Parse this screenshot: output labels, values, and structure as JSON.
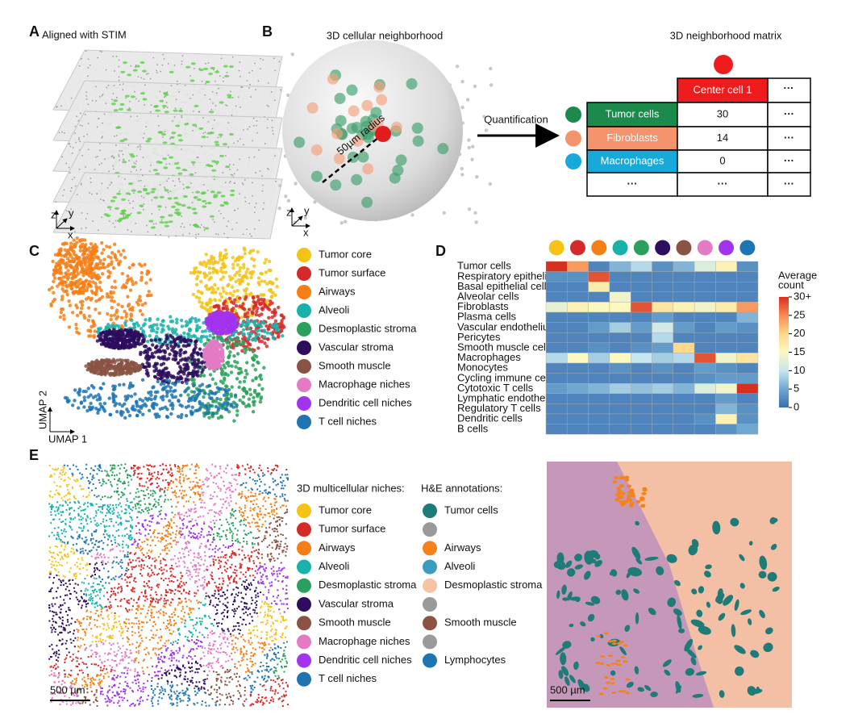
{
  "panel_labels": [
    "A",
    "B",
    "C",
    "D",
    "E"
  ],
  "panel_a": {
    "title": "Aligned with STIM",
    "axes": [
      "z",
      "y",
      "x"
    ]
  },
  "panel_b": {
    "title": "3D cellular neighborhood",
    "radius_label": "50µm radius",
    "axes": [
      "z",
      "y",
      "x"
    ],
    "arrow_label": "Quantification"
  },
  "matrix": {
    "title": "3D neighborhood matrix",
    "center_color": "#ee1c1c",
    "header": [
      "Center cell 1",
      "···"
    ],
    "rows": [
      {
        "label": "Tumor cells",
        "color": "#1b8a4a",
        "cells": [
          30,
          "···"
        ]
      },
      {
        "label": "Fibroblasts",
        "color": "#f4936c",
        "cells": [
          14,
          "···"
        ]
      },
      {
        "label": "Macrophages",
        "color": "#17a9d9",
        "cells": [
          0,
          "···"
        ]
      },
      {
        "label": "···",
        "color": null,
        "cells": [
          "···",
          "···"
        ]
      }
    ]
  },
  "niches": [
    {
      "name": "Tumor core",
      "color": "#f5c216"
    },
    {
      "name": "Tumor surface",
      "color": "#d62a2a"
    },
    {
      "name": "Airways",
      "color": "#f57f17"
    },
    {
      "name": "Alveoli",
      "color": "#19b2aa"
    },
    {
      "name": "Desmoplastic stroma",
      "color": "#2ba05c"
    },
    {
      "name": "Vascular stroma",
      "color": "#2e0c5e"
    },
    {
      "name": "Smooth muscle",
      "color": "#8a5344"
    },
    {
      "name": "Macrophage niches",
      "color": "#e47ac4"
    },
    {
      "name": "Dendritic cell niches",
      "color": "#a233ee"
    },
    {
      "name": "T cell niches",
      "color": "#1f74b4"
    }
  ],
  "umap_axes": [
    "UMAP 2",
    "UMAP 1"
  ],
  "chart_data": {
    "type": "heatmap",
    "rows": [
      "Tumor cells",
      "Respiratory epithelium",
      "Basal epithelial cells",
      "Alveolar cells",
      "Fibroblasts",
      "Plasma cells",
      "Vascular endothelium",
      "Pericytes",
      "Smooth muscle cells",
      "Macrophages",
      "Monocytes",
      "Cycling immune cells",
      "Cytotoxic T cells",
      "Lymphatic endothelium",
      "Regulatory T cells",
      "Dendritic cells",
      "B cells"
    ],
    "column_colors": [
      "#f5c216",
      "#d62a2a",
      "#f57f17",
      "#19b2aa",
      "#2ba05c",
      "#2e0c5e",
      "#8a5344",
      "#e47ac4",
      "#a233ee",
      "#1f74b4"
    ],
    "values": [
      [
        30,
        24,
        2,
        6,
        9,
        3,
        6,
        12,
        16,
        3
      ],
      [
        3,
        3,
        28,
        2,
        2,
        2,
        2,
        2,
        2,
        2
      ],
      [
        2,
        2,
        17,
        2,
        2,
        2,
        2,
        2,
        2,
        2
      ],
      [
        2,
        2,
        2,
        14,
        2,
        2,
        2,
        2,
        2,
        2
      ],
      [
        13,
        16,
        15,
        15,
        28,
        18,
        16,
        14,
        17,
        24
      ],
      [
        2,
        2,
        2,
        2,
        2,
        4,
        2,
        2,
        2,
        6
      ],
      [
        2,
        2,
        4,
        8,
        4,
        11,
        4,
        2,
        4,
        3
      ],
      [
        2,
        2,
        2,
        2,
        2,
        9,
        2,
        2,
        2,
        2
      ],
      [
        2,
        2,
        3,
        2,
        3,
        4,
        20,
        2,
        2,
        2
      ],
      [
        9,
        15,
        8,
        15,
        10,
        8,
        9,
        28,
        14,
        18
      ],
      [
        2,
        2,
        2,
        3,
        2,
        3,
        2,
        4,
        3,
        2
      ],
      [
        2,
        2,
        2,
        2,
        2,
        2,
        2,
        3,
        4,
        4
      ],
      [
        4,
        5,
        6,
        8,
        7,
        8,
        6,
        12,
        14,
        30
      ],
      [
        2,
        2,
        2,
        2,
        2,
        2,
        2,
        2,
        4,
        2
      ],
      [
        2,
        2,
        2,
        2,
        2,
        2,
        2,
        2,
        6,
        3
      ],
      [
        2,
        2,
        2,
        2,
        2,
        2,
        2,
        3,
        16,
        3
      ],
      [
        2,
        2,
        2,
        2,
        2,
        2,
        2,
        2,
        3,
        5
      ]
    ],
    "clim": [
      0,
      30
    ],
    "cticks": [
      0,
      5,
      10,
      15,
      20,
      25,
      {
        "value": 30,
        "label": "30+"
      }
    ],
    "colorbar_title": [
      "Average",
      "count"
    ]
  },
  "panel_e": {
    "niche_title": "3D multicellular niches:",
    "he_title": "H&E annotations:",
    "scale_bar": "500 µm",
    "he": [
      {
        "name": "Tumor cells",
        "color": "#1e7b78"
      },
      {
        "name": null,
        "color": "#9a9a9a"
      },
      {
        "name": "Airways",
        "color": "#f5821a"
      },
      {
        "name": "Alveoli",
        "color": "#3a9dc0"
      },
      {
        "name": "Desmoplastic stroma",
        "color": "#f7c3a3"
      },
      {
        "name": null,
        "color": "#9a9a9a"
      },
      {
        "name": "Smooth muscle",
        "color": "#8a5344"
      },
      {
        "name": null,
        "color": "#9a9a9a"
      },
      {
        "name": "Lymphocytes",
        "color": "#1f74b4"
      }
    ]
  }
}
